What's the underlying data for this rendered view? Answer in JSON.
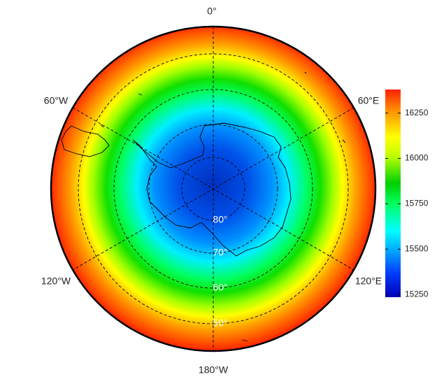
{
  "map": {
    "longitude_labels": [
      "0°",
      "60°E",
      "120°E",
      "180°W",
      "120°W",
      "60°W"
    ],
    "latitude_labels": [
      "80°",
      "70°",
      "60°",
      "50°"
    ]
  },
  "colorbar": {
    "lim": [
      15235,
      16380
    ],
    "ticks": [
      15250,
      15500,
      15750,
      16000,
      16250
    ]
  }
}
